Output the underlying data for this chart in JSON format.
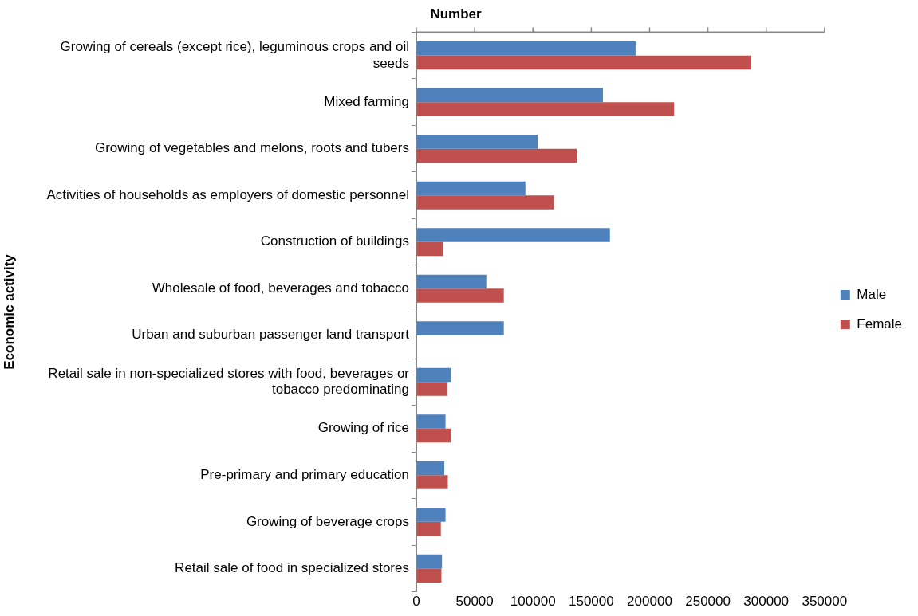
{
  "chart_data": {
    "type": "bar",
    "orientation": "horizontal",
    "xlabel": "Number",
    "ylabel": "Economic activity",
    "categories": [
      "Growing of cereals (except rice), leguminous crops and oil seeds",
      "Mixed farming",
      "Growing of vegetables and melons, roots and tubers",
      "Activities of households as employers of domestic personnel",
      "Construction of buildings",
      "Wholesale of food, beverages and tobacco",
      "Urban and suburban passenger land transport",
      "Retail sale in non-specialized stores with food, beverages or tobacco predominating",
      "Growing of rice",
      "Pre-primary and primary education",
      "Growing of beverage crops",
      "Retail sale of food in specialized stores"
    ],
    "series": [
      {
        "name": "Male",
        "color": "#4f81bd",
        "values": [
          188000,
          160000,
          104000,
          93500,
          166000,
          60000,
          75000,
          30000,
          25000,
          24000,
          25000,
          22000
        ]
      },
      {
        "name": "Female",
        "color": "#c0504d",
        "values": [
          287000,
          221000,
          137500,
          118000,
          23000,
          75000,
          null,
          26500,
          29500,
          27000,
          21000,
          21500
        ]
      }
    ],
    "xlim": [
      0,
      350000
    ],
    "xticks": [
      0,
      50000,
      100000,
      150000,
      200000,
      250000,
      300000,
      350000
    ],
    "grid": false,
    "legend": "right"
  }
}
